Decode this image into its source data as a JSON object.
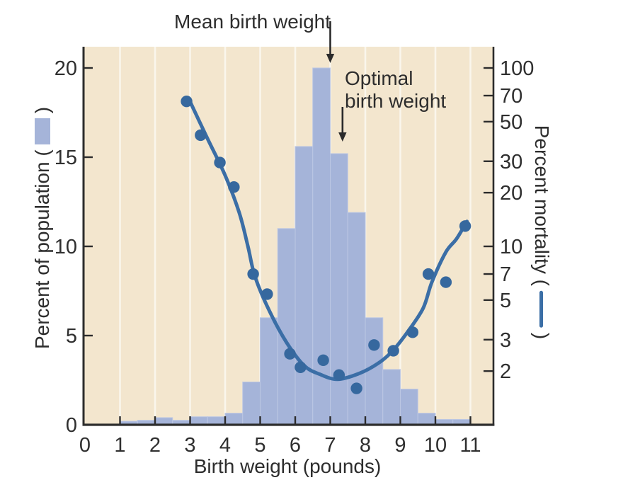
{
  "figure": {
    "annotations": {
      "mean": {
        "text": "Mean birth weight",
        "arrow_x_lb": 7.0
      },
      "optimal": {
        "text_line1": "Optimal",
        "text_line2": "birth weight",
        "arrow_x_lb": 7.35
      }
    },
    "left_axis": {
      "title_prefix": "Percent of population (",
      "title_suffix": ")"
    },
    "right_axis": {
      "title_prefix": "Percent mortality (",
      "title_suffix": ")"
    },
    "x_axis": {
      "title": "Birth weight (pounds)"
    }
  },
  "chart_data": {
    "type": "combo-histogram-scatter-line",
    "xlabel": "Birth weight (pounds)",
    "left_ylabel": "Percent of population",
    "right_ylabel": "Percent mortality",
    "x_ticks": [
      0,
      1,
      2,
      3,
      4,
      5,
      6,
      7,
      8,
      9,
      10,
      11
    ],
    "left_ticks": [
      0,
      5,
      10,
      15,
      20
    ],
    "right_ticks": [
      2,
      3,
      5,
      7,
      10,
      20,
      30,
      50,
      70,
      100
    ],
    "right_scale": "log",
    "xlim": [
      0,
      11.66
    ],
    "left_ylim": [
      0,
      21.2
    ],
    "right_ylim": [
      1,
      100
    ],
    "grid": "vertical-white-lines-at-integer-pounds",
    "histogram": {
      "bin_start_lb": 1.0,
      "bin_width_lb": 0.5,
      "values_percent": [
        0.2,
        0.25,
        0.4,
        0.25,
        0.45,
        0.45,
        0.65,
        2.4,
        6.0,
        11.0,
        15.6,
        20.0,
        15.2,
        11.9,
        6.0,
        3.1,
        2.0,
        0.65,
        0.3,
        0.3
      ]
    },
    "mortality_points_lb_pct": [
      [
        2.9,
        65
      ],
      [
        3.3,
        42
      ],
      [
        3.85,
        29.5
      ],
      [
        4.25,
        21.5
      ],
      [
        4.8,
        7.0
      ],
      [
        5.2,
        5.4
      ],
      [
        5.85,
        2.5
      ],
      [
        6.15,
        2.1
      ],
      [
        6.8,
        2.3
      ],
      [
        7.25,
        1.9
      ],
      [
        7.75,
        1.6
      ],
      [
        8.25,
        2.8
      ],
      [
        8.8,
        2.6
      ],
      [
        9.35,
        3.3
      ],
      [
        9.8,
        7.0
      ],
      [
        10.3,
        6.3
      ],
      [
        10.85,
        13
      ]
    ],
    "mortality_curve_lb_pct": [
      [
        2.95,
        68
      ],
      [
        3.45,
        42
      ],
      [
        4.0,
        25
      ],
      [
        4.4,
        15.5
      ],
      [
        4.65,
        10
      ],
      [
        4.85,
        6.8
      ],
      [
        5.25,
        4.4
      ],
      [
        5.75,
        2.9
      ],
      [
        6.25,
        2.15
      ],
      [
        6.7,
        1.92
      ],
      [
        7.2,
        1.8
      ],
      [
        7.8,
        1.93
      ],
      [
        8.35,
        2.2
      ],
      [
        8.75,
        2.56
      ],
      [
        9.2,
        3.3
      ],
      [
        9.65,
        4.5
      ],
      [
        9.9,
        6.3
      ],
      [
        10.3,
        9.3
      ],
      [
        10.6,
        11
      ],
      [
        10.9,
        13.8
      ]
    ],
    "colors": {
      "plot_bg": "#f3e6ce",
      "gridline": "#faf6ec",
      "bar_fill": "#a5b4d9",
      "bar_edge": "#bcc7e3",
      "curve": "#3b6ea6",
      "point": "#36689e",
      "axis": "#2c2c2c",
      "text": "#2f2f2f"
    }
  }
}
